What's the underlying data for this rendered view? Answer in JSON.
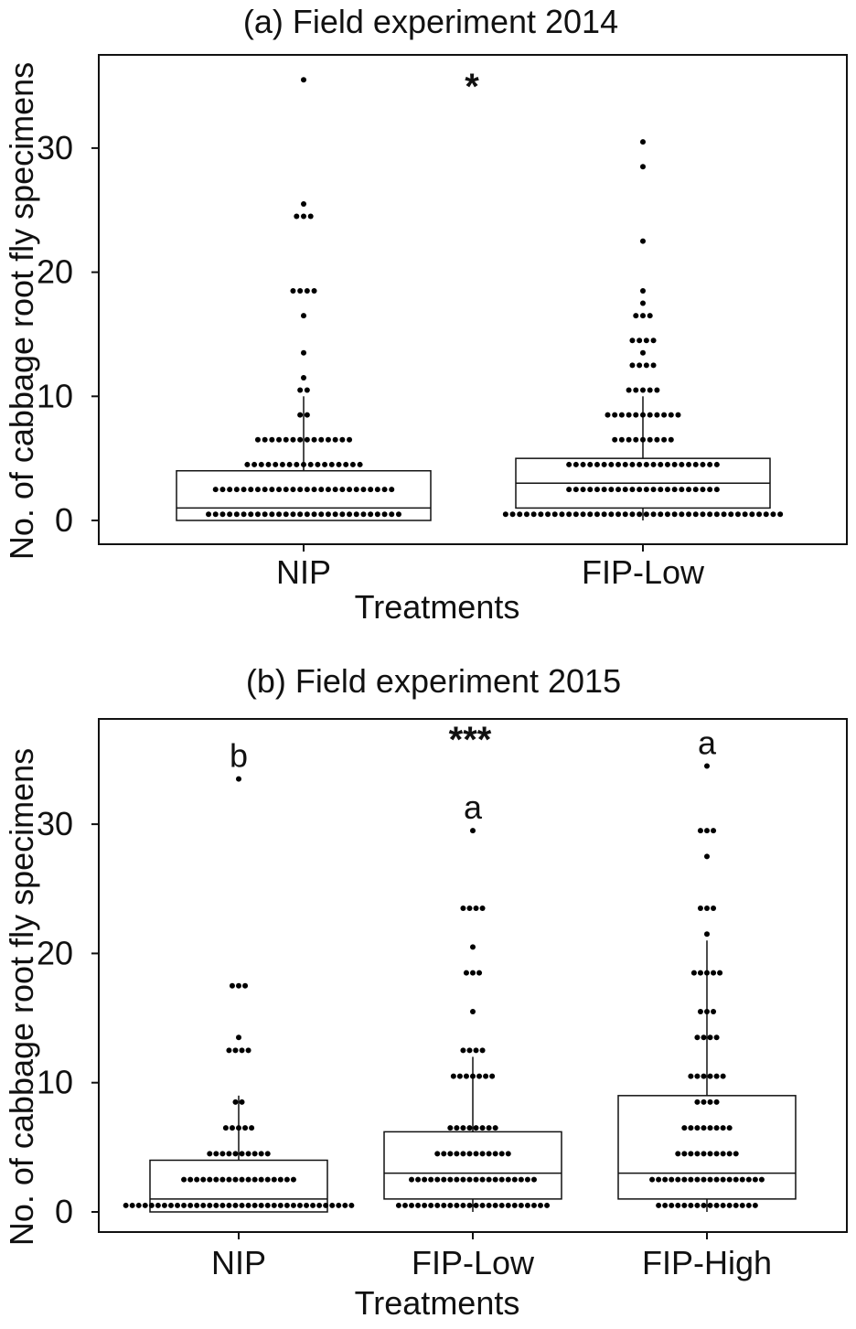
{
  "chart_data": [
    {
      "type": "box",
      "title": "(a) Field experiment 2014",
      "xlabel": "Treatments",
      "ylabel": "No. of cabbage root fly specimens",
      "ylim": [
        -2,
        37.5
      ],
      "yticks": [
        0,
        10,
        20,
        30
      ],
      "ytick_labels": [
        "0",
        "10",
        "20",
        "30"
      ],
      "grid": false,
      "significance": "*",
      "categories": [
        "NIP",
        "FIP-Low"
      ],
      "boxes": [
        {
          "name": "NIP",
          "q1": 0,
          "median": 1,
          "q3": 4,
          "whisker_low": 0,
          "whisker_high": 10,
          "letter": ""
        },
        {
          "name": "FIP-Low",
          "q1": 1,
          "median": 3,
          "q3": 5,
          "whisker_low": 0,
          "whisker_high": 10,
          "letter": ""
        }
      ],
      "points": [
        [
          [
            0,
            28
          ],
          [
            2,
            26
          ],
          [
            4,
            17
          ],
          [
            6,
            14
          ],
          [
            8,
            2
          ],
          [
            10,
            2
          ],
          [
            11,
            1
          ],
          [
            13,
            1
          ],
          [
            16,
            1
          ],
          [
            18,
            4
          ],
          [
            24,
            3
          ],
          [
            25,
            1
          ],
          [
            35,
            1
          ]
        ],
        [
          [
            0,
            40
          ],
          [
            2,
            22
          ],
          [
            4,
            22
          ],
          [
            6,
            9
          ],
          [
            8,
            11
          ],
          [
            10,
            5
          ],
          [
            12,
            4
          ],
          [
            13,
            1
          ],
          [
            14,
            4
          ],
          [
            16,
            3
          ],
          [
            17,
            1
          ],
          [
            18,
            1
          ],
          [
            22,
            1
          ],
          [
            28,
            1
          ],
          [
            30,
            1
          ]
        ]
      ]
    },
    {
      "type": "box",
      "title": "(b) Field experiment 2015",
      "xlabel": "Treatments",
      "ylabel": "No. of cabbage root fly specimens",
      "ylim": [
        -1.5,
        38
      ],
      "yticks": [
        0,
        10,
        20,
        30
      ],
      "ytick_labels": [
        "0",
        "10",
        "20",
        "30"
      ],
      "grid": false,
      "significance": "***",
      "categories": [
        "NIP",
        "FIP-Low",
        "FIP-High"
      ],
      "boxes": [
        {
          "name": "NIP",
          "q1": 0,
          "median": 1,
          "q3": 4,
          "whisker_low": 0,
          "whisker_high": 9,
          "letter": "b"
        },
        {
          "name": "FIP-Low",
          "q1": 1,
          "median": 3,
          "q3": 6.2,
          "whisker_low": 0,
          "whisker_high": 12,
          "letter": "a"
        },
        {
          "name": "FIP-High",
          "q1": 1,
          "median": 3,
          "q3": 9,
          "whisker_low": 0,
          "whisker_high": 21,
          "letter": "a"
        }
      ],
      "points": [
        [
          [
            0,
            36
          ],
          [
            2,
            18
          ],
          [
            4,
            10
          ],
          [
            6,
            5
          ],
          [
            8,
            2
          ],
          [
            12,
            4
          ],
          [
            13,
            1
          ],
          [
            17,
            3
          ],
          [
            33,
            1
          ]
        ],
        [
          [
            0,
            24
          ],
          [
            2,
            20
          ],
          [
            4,
            12
          ],
          [
            6,
            8
          ],
          [
            10,
            7
          ],
          [
            12,
            4
          ],
          [
            15,
            1
          ],
          [
            18,
            3
          ],
          [
            20,
            1
          ],
          [
            23,
            4
          ],
          [
            29,
            1
          ]
        ],
        [
          [
            0,
            16
          ],
          [
            2,
            18
          ],
          [
            4,
            10
          ],
          [
            6,
            8
          ],
          [
            8,
            4
          ],
          [
            10,
            6
          ],
          [
            13,
            4
          ],
          [
            15,
            3
          ],
          [
            18,
            5
          ],
          [
            21,
            1
          ],
          [
            23,
            3
          ],
          [
            27,
            1
          ],
          [
            29,
            3
          ],
          [
            34,
            1
          ]
        ]
      ]
    }
  ]
}
